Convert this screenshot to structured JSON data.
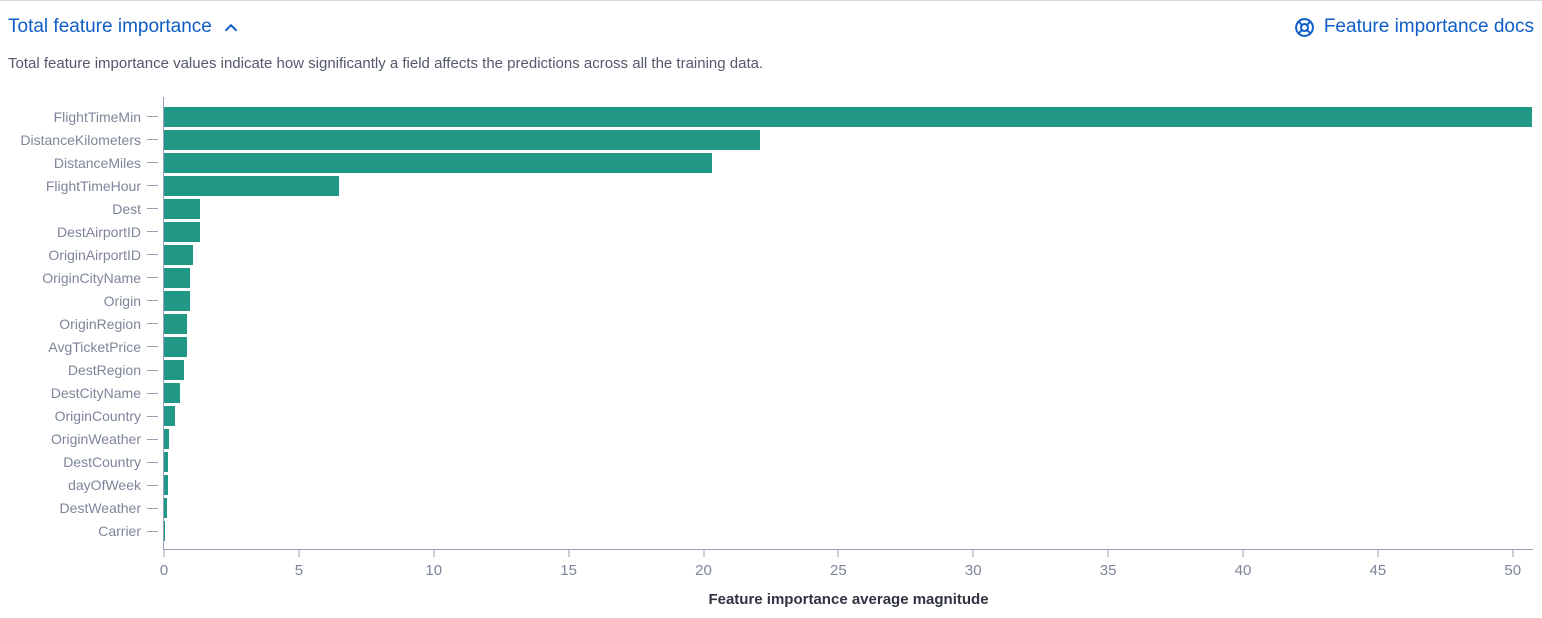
{
  "header": {
    "title": "Total feature importance",
    "docs_link_label": "Feature importance docs"
  },
  "description": "Total feature importance values indicate how significantly a field affects the predictions across all the training data.",
  "chart_data": {
    "type": "bar",
    "orientation": "horizontal",
    "title": "Total feature importance",
    "xlabel": "Feature importance average magnitude",
    "ylabel": "",
    "categories": [
      "FlightTimeMin",
      "DistanceKilometers",
      "DistanceMiles",
      "FlightTimeHour",
      "Dest",
      "DestAirportID",
      "OriginAirportID",
      "OriginCityName",
      "Origin",
      "OriginRegion",
      "AvgTicketPrice",
      "DestRegion",
      "DestCityName",
      "OriginCountry",
      "OriginWeather",
      "DestCountry",
      "dayOfWeek",
      "DestWeather",
      "Carrier"
    ],
    "values": [
      50.7,
      22.1,
      20.3,
      6.5,
      1.34,
      1.32,
      1.07,
      0.97,
      0.95,
      0.87,
      0.84,
      0.75,
      0.59,
      0.41,
      0.17,
      0.15,
      0.15,
      0.1,
      0.05
    ],
    "xticks": [
      0,
      5,
      10,
      15,
      20,
      25,
      30,
      35,
      40,
      45,
      50
    ],
    "xlim": [
      0,
      50.75
    ],
    "grid": false,
    "legend": "none",
    "bar_color": "#219785"
  },
  "icons": {
    "chevron": "chevron-up-icon",
    "docs": "documentation-icon"
  },
  "colors": {
    "link": "#0E5DC8",
    "bar": "#219785",
    "axis": "#98A0B5",
    "tick_label": "#7D8699",
    "description_text": "#53596B",
    "axis_title": "#2F3440"
  }
}
